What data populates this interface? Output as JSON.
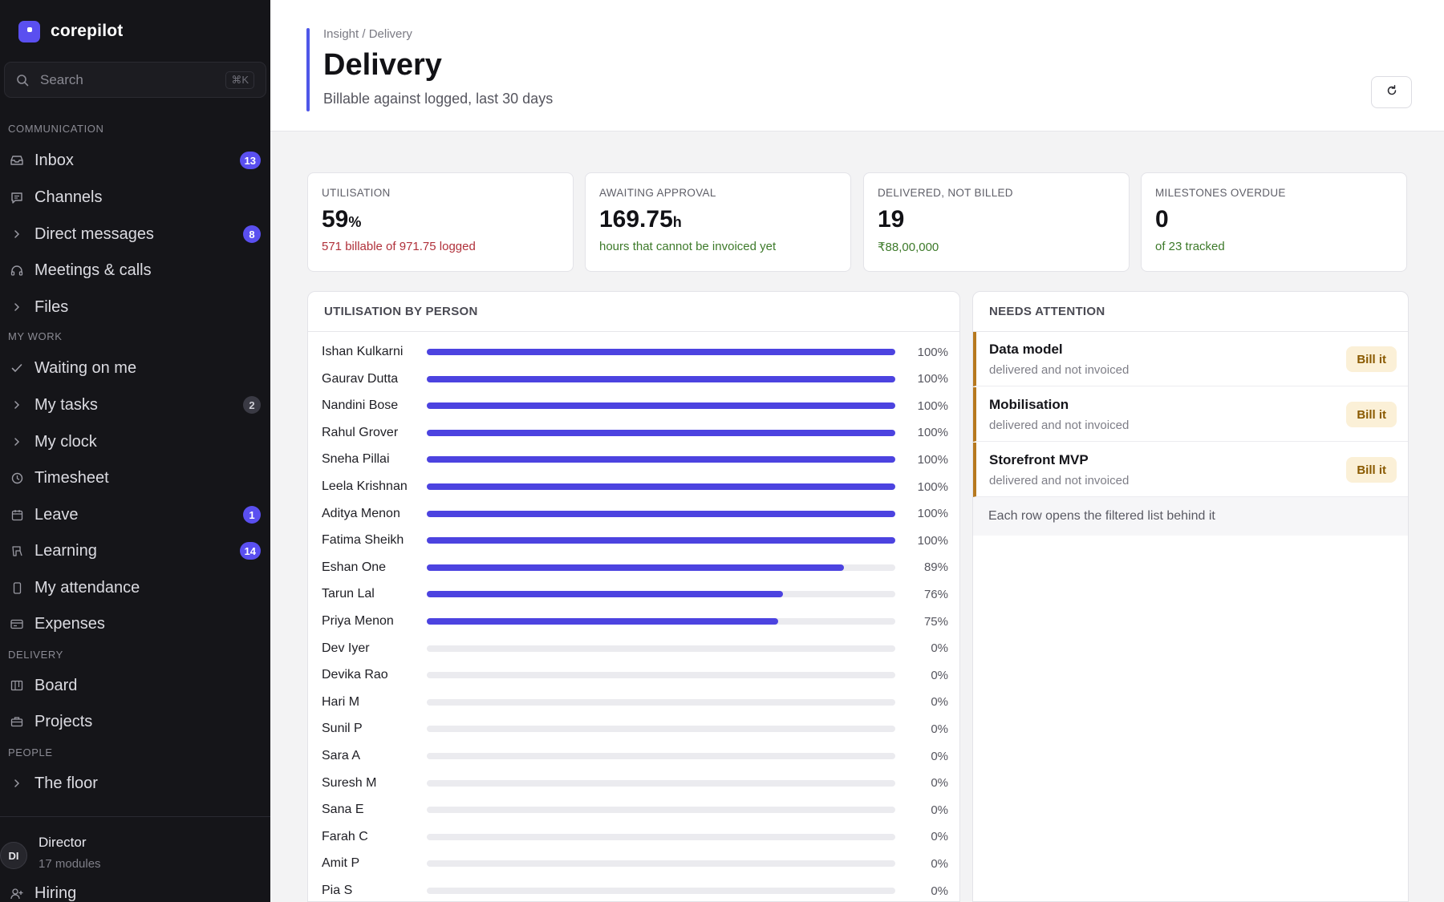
{
  "app": {
    "name": "corepilot"
  },
  "search": {
    "placeholder": "Search",
    "shortcut": "⌘K"
  },
  "sidebar": {
    "sections": [
      {
        "label": "COMMUNICATION",
        "items": [
          {
            "label": "Inbox",
            "icon": "inbox-icon",
            "badge": "13"
          },
          {
            "label": "Channels",
            "icon": "chat-icon",
            "badge": ""
          },
          {
            "label": "Direct messages",
            "icon": "chevron-right-icon",
            "badge": "8"
          },
          {
            "label": "Meetings & calls",
            "icon": "headset-icon",
            "badge": ""
          },
          {
            "label": "Files",
            "icon": "chevron-right-icon",
            "badge": ""
          }
        ]
      },
      {
        "label": "MY WORK",
        "items": [
          {
            "label": "Waiting on me",
            "icon": "check-icon",
            "badge": ""
          },
          {
            "label": "My tasks",
            "icon": "chevron-right-icon",
            "badge": "2"
          },
          {
            "label": "My clock",
            "icon": "chevron-right-icon",
            "badge": ""
          },
          {
            "label": "Timesheet",
            "icon": "clock-icon",
            "badge": ""
          },
          {
            "label": "Leave",
            "icon": "calendar-icon",
            "badge": "1"
          },
          {
            "label": "Learning",
            "icon": "book-icon",
            "badge": "14"
          },
          {
            "label": "My attendance",
            "icon": "phone-icon",
            "badge": ""
          },
          {
            "label": "Expenses",
            "icon": "card-icon",
            "badge": ""
          }
        ]
      },
      {
        "label": "DELIVERY",
        "items": [
          {
            "label": "Board",
            "icon": "board-icon",
            "badge": ""
          },
          {
            "label": "Projects",
            "icon": "briefcase-icon",
            "badge": ""
          }
        ]
      },
      {
        "label": "PEOPLE",
        "items": [
          {
            "label": "The floor",
            "icon": "chevron-right-icon",
            "badge": ""
          }
        ]
      }
    ],
    "user": {
      "initials": "DI",
      "name": "Director",
      "sub": "17 modules"
    },
    "extra_item": {
      "label": "Hiring",
      "icon": "user-plus-icon"
    }
  },
  "header": {
    "breadcrumb": "Insight / Delivery",
    "title": "Delivery",
    "subtitle": "Billable against logged, last 30 days"
  },
  "stats": [
    {
      "caption": "UTILISATION",
      "value": "59",
      "unit": "%",
      "note": "571 billable of 971.75 logged",
      "note_color": "#b0303a"
    },
    {
      "caption": "AWAITING APPROVAL",
      "value": "169.75",
      "unit": "h",
      "note": "hours that cannot be invoiced yet",
      "note_color": "#3d7a2a"
    },
    {
      "caption": "DELIVERED, NOT BILLED",
      "value": "19",
      "unit": "",
      "note": "₹88,00,000",
      "note_color": "#3d7a2a"
    },
    {
      "caption": "MILESTONES OVERDUE",
      "value": "0",
      "unit": "",
      "note": "of 23 tracked",
      "note_color": "#3d7a2a"
    }
  ],
  "utilisation": {
    "heading": "UTILISATION BY PERSON",
    "people": [
      {
        "name": "Ishan Kulkarni",
        "pct": 100,
        "label": "100%"
      },
      {
        "name": "Gaurav Dutta",
        "pct": 100,
        "label": "100%"
      },
      {
        "name": "Nandini Bose",
        "pct": 100,
        "label": "100%"
      },
      {
        "name": "Rahul Grover",
        "pct": 100,
        "label": "100%"
      },
      {
        "name": "Sneha Pillai",
        "pct": 100,
        "label": "100%"
      },
      {
        "name": "Leela Krishnan",
        "pct": 100,
        "label": "100%"
      },
      {
        "name": "Aditya Menon",
        "pct": 100,
        "label": "100%"
      },
      {
        "name": "Fatima Sheikh",
        "pct": 100,
        "label": "100%"
      },
      {
        "name": "Eshan One",
        "pct": 89,
        "label": "89%"
      },
      {
        "name": "Tarun Lal",
        "pct": 76,
        "label": "76%"
      },
      {
        "name": "Priya Menon",
        "pct": 75,
        "label": "75%"
      },
      {
        "name": "Dev Iyer",
        "pct": 0,
        "label": "0%"
      },
      {
        "name": "Devika Rao",
        "pct": 0,
        "label": "0%"
      },
      {
        "name": "Hari M",
        "pct": 0,
        "label": "0%"
      },
      {
        "name": "Sunil P",
        "pct": 0,
        "label": "0%"
      },
      {
        "name": "Sara A",
        "pct": 0,
        "label": "0%"
      },
      {
        "name": "Suresh M",
        "pct": 0,
        "label": "0%"
      },
      {
        "name": "Sana E",
        "pct": 0,
        "label": "0%"
      },
      {
        "name": "Farah C",
        "pct": 0,
        "label": "0%"
      },
      {
        "name": "Amit P",
        "pct": 0,
        "label": "0%"
      },
      {
        "name": "Pia S",
        "pct": 0,
        "label": "0%"
      }
    ]
  },
  "attention": {
    "heading": "NEEDS ATTENTION",
    "items": [
      {
        "title": "Data model",
        "sub": "delivered and not invoiced",
        "action": "Bill it"
      },
      {
        "title": "Mobilisation",
        "sub": "delivered and not invoiced",
        "action": "Bill it"
      },
      {
        "title": "Storefront MVP",
        "sub": "delivered and not invoiced",
        "action": "Bill it"
      }
    ],
    "footer": "Each row opens the filtered list behind it"
  }
}
